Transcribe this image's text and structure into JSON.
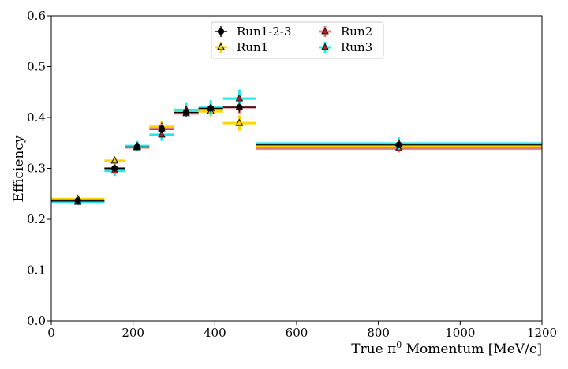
{
  "chart_data": {
    "type": "scatter",
    "title": "",
    "xlabel": "True π",
    "xlabel_sup": "0",
    "xlabel_rest": " Momentum [MeV/c]",
    "ylabel": "Efficiency",
    "xlim": [
      0,
      1200
    ],
    "ylim": [
      0.0,
      0.6
    ],
    "x_ticks": [
      "0",
      "200",
      "400",
      "600",
      "800",
      "1000",
      "1200"
    ],
    "y_ticks": [
      "0.0",
      "0.1",
      "0.2",
      "0.3",
      "0.4",
      "0.5",
      "0.6"
    ],
    "x_tick_values": [
      0,
      200,
      400,
      600,
      800,
      1000,
      1200
    ],
    "y_tick_values": [
      0.0,
      0.1,
      0.2,
      0.3,
      0.4,
      0.5,
      0.6
    ],
    "grid": false,
    "legend_position": "top-center",
    "bins": [
      {
        "low": 0,
        "high": 130,
        "x": 65
      },
      {
        "low": 130,
        "high": 180,
        "x": 155
      },
      {
        "low": 180,
        "high": 240,
        "x": 210
      },
      {
        "low": 240,
        "high": 300,
        "x": 270
      },
      {
        "low": 300,
        "high": 360,
        "x": 330
      },
      {
        "low": 360,
        "high": 420,
        "x": 390
      },
      {
        "low": 420,
        "high": 500,
        "x": 460
      },
      {
        "low": 500,
        "high": 1200,
        "x": 850
      }
    ],
    "series": [
      {
        "name": "Run1",
        "color": "#FFD700",
        "marker": "triangle-open",
        "values": [
          0.24,
          0.315,
          0.342,
          0.382,
          0.412,
          0.412,
          0.389,
          0.342
        ],
        "errors": [
          0.005,
          0.008,
          0.008,
          0.012,
          0.01,
          0.01,
          0.015,
          0.008
        ]
      },
      {
        "name": "Run2",
        "color": "#E67C7C",
        "marker": "triangle-filled",
        "values": [
          0.236,
          0.3,
          0.341,
          0.378,
          0.408,
          0.418,
          0.42,
          0.339
        ],
        "errors": [
          0.005,
          0.008,
          0.008,
          0.01,
          0.008,
          0.01,
          0.012,
          0.008
        ]
      },
      {
        "name": "Run3",
        "color": "#22E8F2",
        "marker": "triangle-filled",
        "values": [
          0.234,
          0.295,
          0.344,
          0.366,
          0.415,
          0.419,
          0.437,
          0.349
        ],
        "errors": [
          0.006,
          0.01,
          0.01,
          0.012,
          0.015,
          0.015,
          0.018,
          0.012
        ]
      },
      {
        "name": "Run1-2-3",
        "color": "#000000",
        "marker": "circle",
        "values": [
          0.236,
          0.3,
          0.342,
          0.377,
          0.41,
          0.418,
          0.42,
          0.346
        ],
        "errors": [
          0.004,
          0.006,
          0.006,
          0.008,
          0.008,
          0.008,
          0.01,
          0.006
        ]
      }
    ],
    "legend_order": [
      "Run1-2-3",
      "Run1",
      "Run2",
      "Run3"
    ]
  }
}
